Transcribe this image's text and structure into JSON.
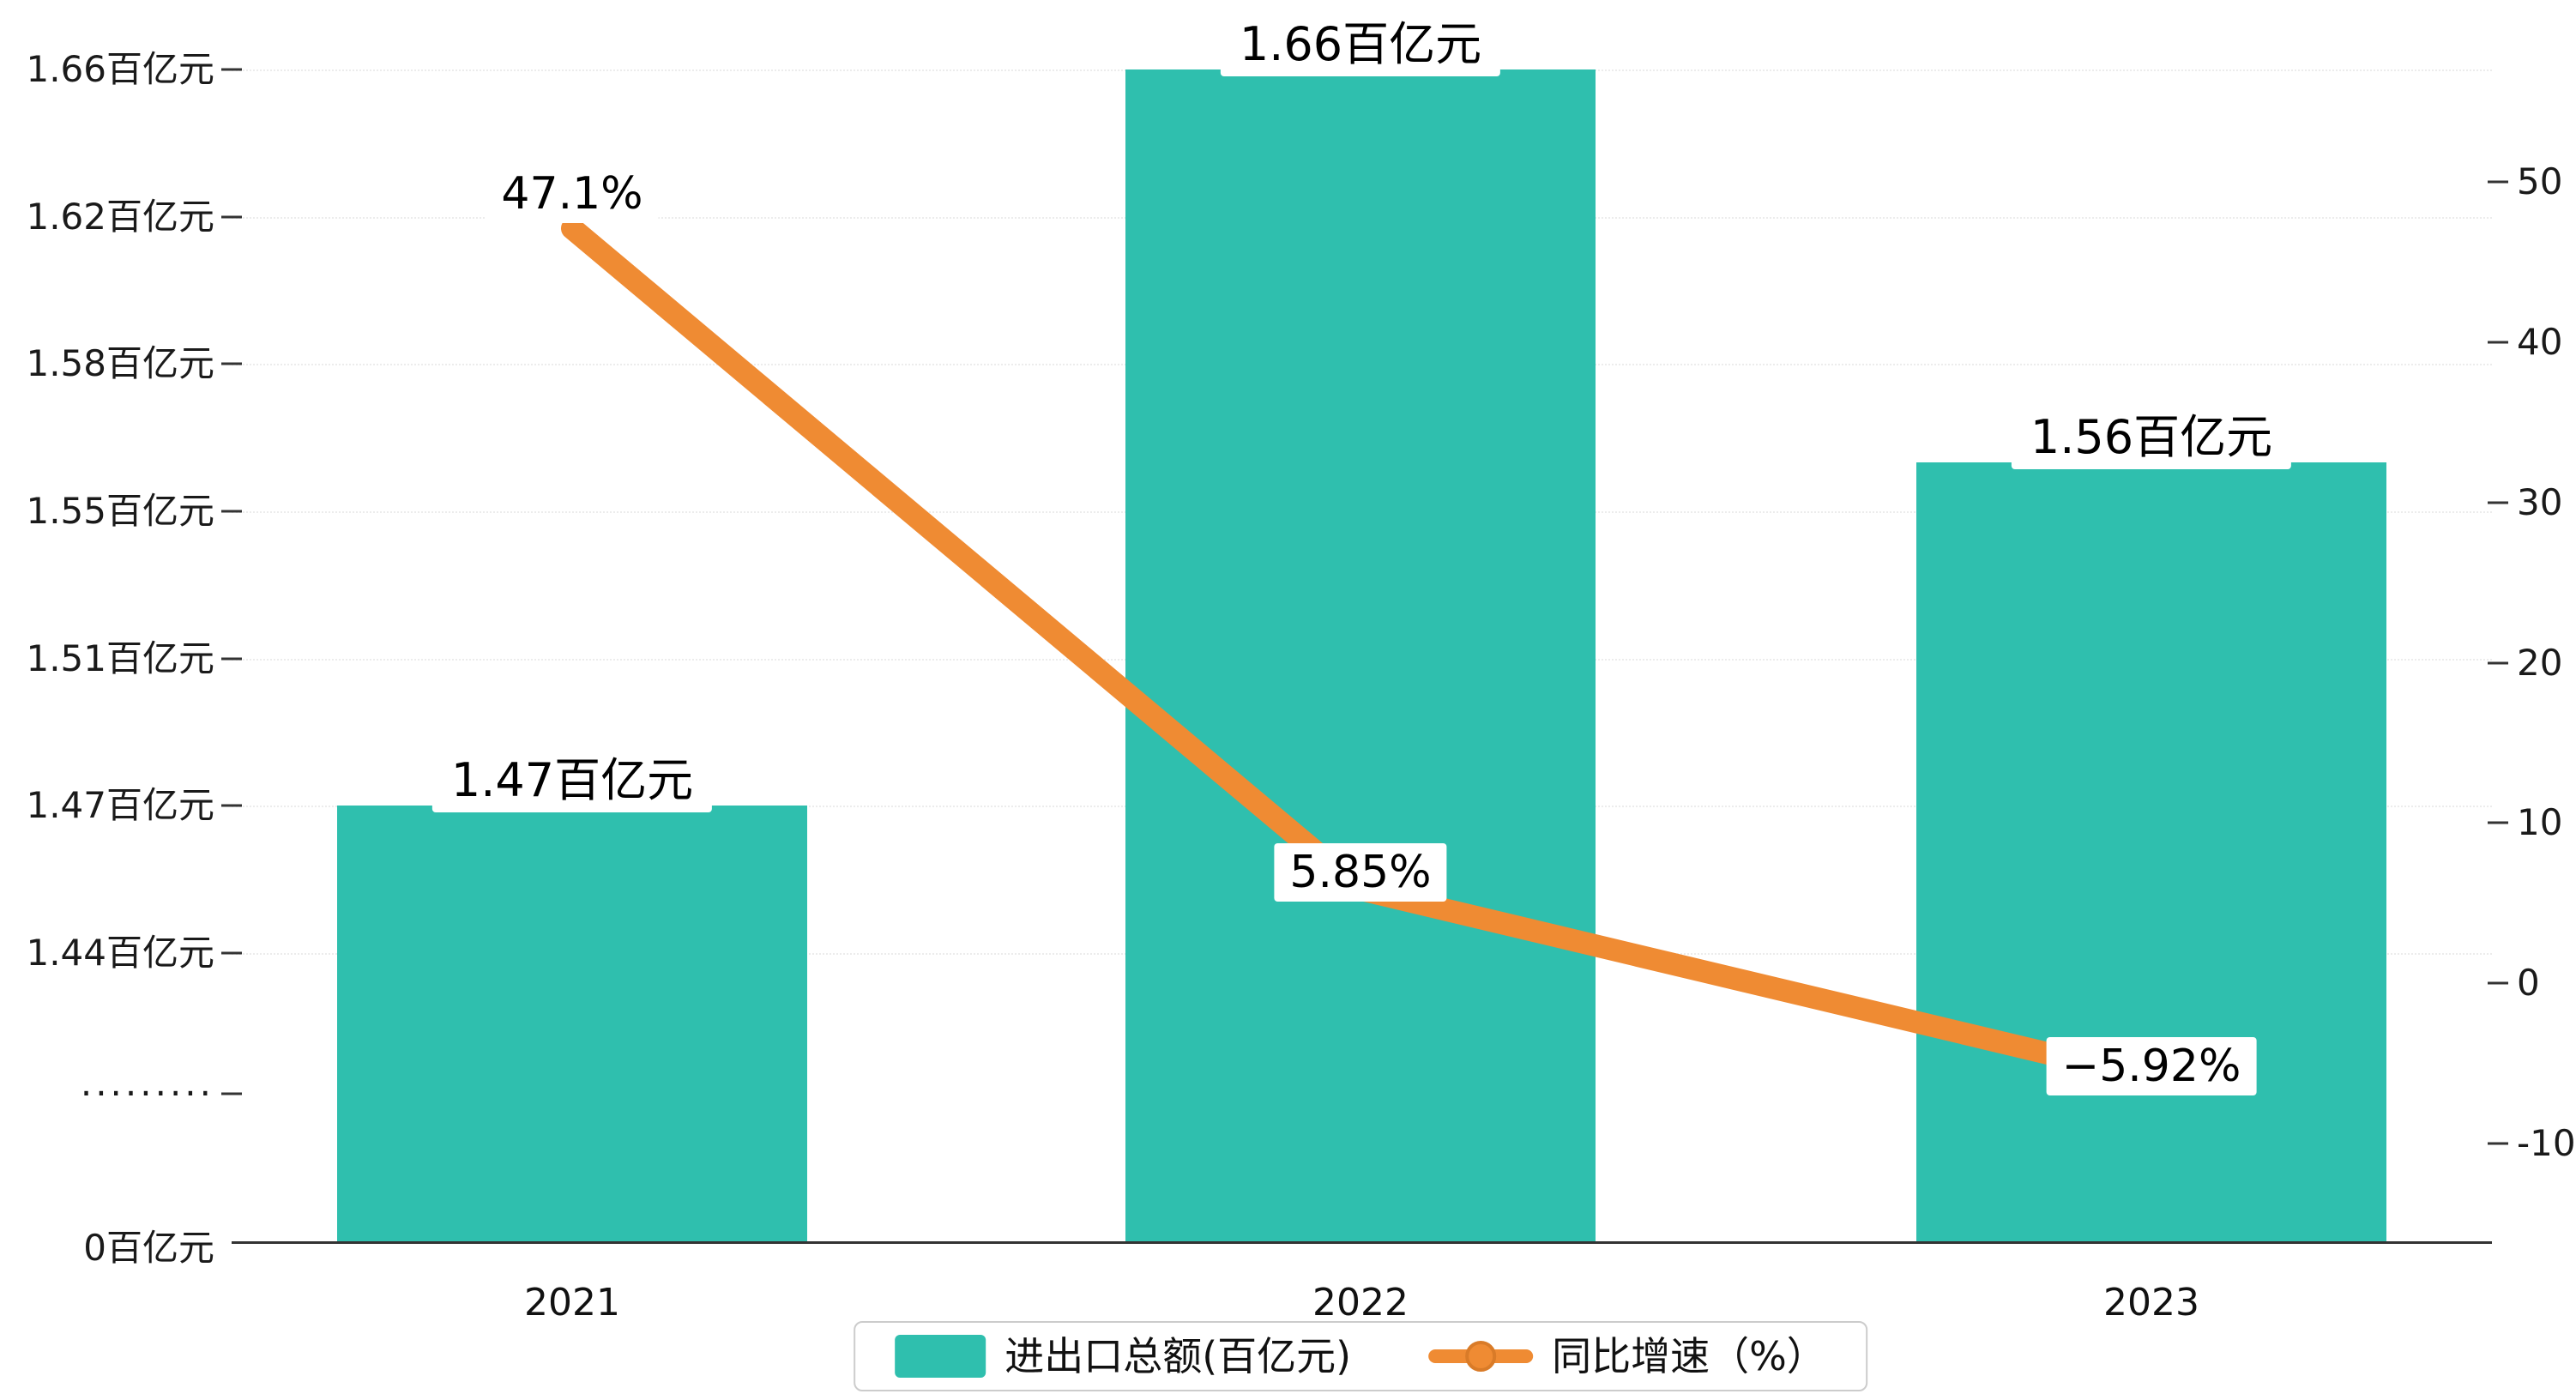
{
  "chart_data": {
    "type": "bar",
    "subtype": "bar-line-combo",
    "categories": [
      "2021",
      "2022",
      "2023"
    ],
    "series": [
      {
        "name": "进出口总额(百亿元)",
        "type": "bar",
        "unit": "百亿元",
        "values": [
          1.47,
          1.66,
          1.56
        ],
        "data_labels": [
          "1.47百亿元",
          "1.66百亿元",
          "1.56百亿元"
        ],
        "color": "#2fbfae",
        "axis": "left"
      },
      {
        "name": "同比增速（%）",
        "type": "line",
        "unit": "%",
        "values": [
          47.1,
          5.85,
          -5.92
        ],
        "data_labels": [
          "47.1%",
          "5.85%",
          "−5.92%"
        ],
        "color": "#ef8b33",
        "axis": "right"
      }
    ],
    "left_axis": {
      "tick_labels": [
        "1.66百亿元",
        "1.62百亿元",
        "1.58百亿元",
        "1.55百亿元",
        "1.51百亿元",
        "1.47百亿元",
        "1.44百亿元"
      ],
      "tick_values": [
        1.66,
        1.62,
        1.58,
        1.55,
        1.51,
        1.47,
        1.44
      ],
      "break_label": "·········",
      "zero_label": "0百亿元",
      "has_break": true
    },
    "right_axis": {
      "tick_labels": [
        "50",
        "40",
        "30",
        "20",
        "10",
        "0",
        "-10"
      ],
      "tick_values": [
        50,
        40,
        30,
        20,
        10,
        0,
        -10
      ],
      "max": 50,
      "min": -10
    },
    "title": "",
    "xlabel": "",
    "ylabel": "",
    "grid": "dotted-horizontal",
    "legend_position": "bottom"
  },
  "colors": {
    "bar": "#2fbfae",
    "line": "#ef8b33",
    "grid": "#ececec",
    "axis_text": "#1a1a1a",
    "legend_border": "#cccccc",
    "background": "#ffffff"
  }
}
